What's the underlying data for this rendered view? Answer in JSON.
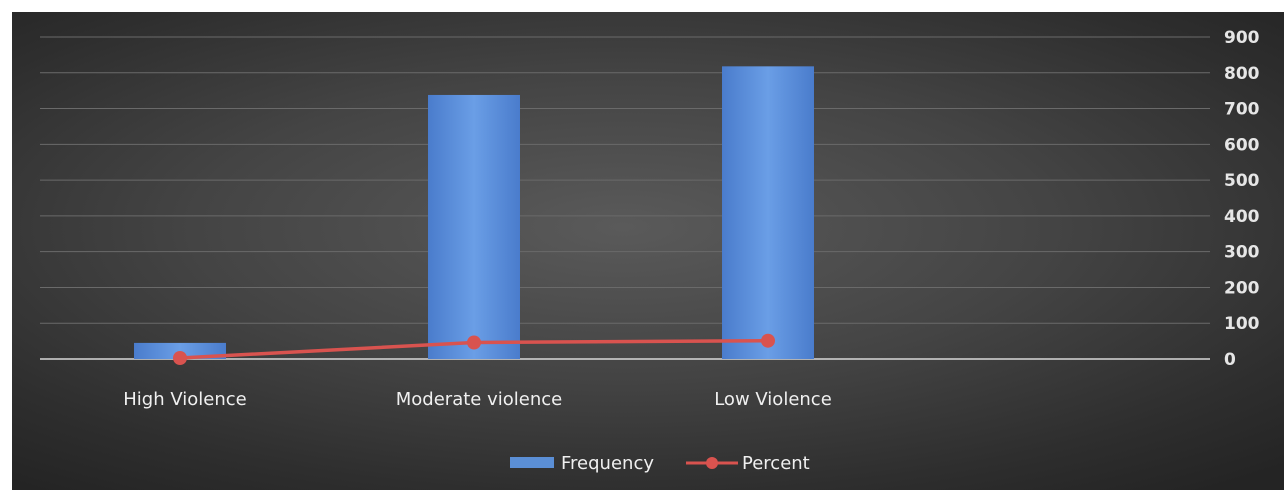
{
  "chart_data": {
    "type": "bar",
    "categories": [
      "High Violence",
      "Moderate violence",
      "Low Violence"
    ],
    "series": [
      {
        "name": "Frequency",
        "type": "bar",
        "values": [
          45,
          738,
          818
        ],
        "color": "#5b8fd6"
      },
      {
        "name": "Percent",
        "type": "line",
        "values": [
          2.8,
          46.1,
          51.1
        ],
        "color": "#d9534f"
      }
    ],
    "yticks": [
      0,
      100,
      200,
      300,
      400,
      500,
      600,
      700,
      800,
      900
    ],
    "ylim": [
      0,
      900
    ],
    "y_axis_side": "right",
    "grid": true,
    "legend": "bottom",
    "title": "",
    "xlabel": "",
    "ylabel": ""
  }
}
